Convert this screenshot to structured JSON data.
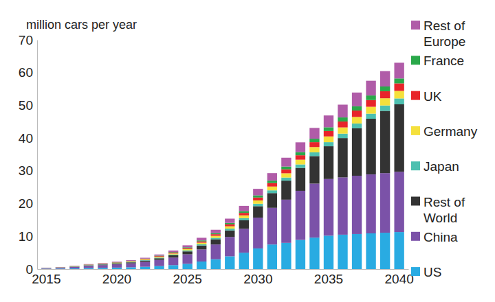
{
  "chart_data": {
    "type": "bar",
    "stacked": true,
    "legend": "right",
    "grid": false,
    "y_label": "million cars per year",
    "categories": [
      "2015",
      null,
      null,
      null,
      null,
      "2020",
      null,
      null,
      null,
      null,
      "2025",
      null,
      null,
      null,
      null,
      "2030",
      null,
      null,
      null,
      null,
      "2035",
      null,
      null,
      null,
      null,
      "2040"
    ],
    "ylim": [
      0,
      70
    ],
    "yticks": [
      0,
      10,
      20,
      30,
      40,
      50,
      60,
      70
    ],
    "series": [
      {
        "name": "US",
        "color": "#29abe2",
        "values": [
          0.1,
          0.15,
          0.2,
          0.3,
          0.35,
          0.45,
          0.55,
          0.7,
          0.9,
          1.2,
          1.6,
          2.3,
          3.0,
          3.9,
          5.0,
          6.3,
          7.5,
          8.0,
          8.9,
          9.6,
          10.2,
          10.5,
          10.7,
          10.9,
          11.1,
          11.3
        ]
      },
      {
        "name": "China",
        "color": "#7b52a8",
        "values": [
          0.15,
          0.25,
          0.45,
          0.7,
          0.85,
          1.0,
          1.2,
          1.5,
          1.9,
          2.3,
          2.9,
          3.7,
          4.5,
          5.9,
          7.3,
          9.4,
          11.2,
          13.2,
          15.0,
          16.5,
          17.3,
          17.5,
          17.8,
          18.0,
          18.2,
          18.4
        ]
      },
      {
        "name": "Rest of World",
        "color": "#333333",
        "values": [
          0.05,
          0.05,
          0.1,
          0.15,
          0.2,
          0.25,
          0.3,
          0.4,
          0.5,
          0.7,
          0.9,
          1.2,
          1.6,
          2.0,
          2.6,
          3.5,
          4.5,
          5.8,
          7.0,
          8.4,
          10.0,
          12.0,
          14.5,
          17.0,
          19.0,
          20.6
        ]
      },
      {
        "name": "Japan",
        "color": "#4dc0b0",
        "values": [
          0.03,
          0.04,
          0.05,
          0.07,
          0.08,
          0.1,
          0.12,
          0.15,
          0.2,
          0.25,
          0.3,
          0.35,
          0.45,
          0.55,
          0.65,
          0.75,
          0.85,
          0.95,
          1.05,
          1.15,
          1.25,
          1.35,
          1.45,
          1.55,
          1.65,
          1.8
        ]
      },
      {
        "name": "Germany",
        "color": "#f5e03c",
        "values": [
          0.02,
          0.03,
          0.05,
          0.08,
          0.1,
          0.12,
          0.15,
          0.2,
          0.25,
          0.3,
          0.4,
          0.5,
          0.6,
          0.7,
          0.85,
          1.0,
          1.15,
          1.3,
          1.45,
          1.6,
          1.75,
          1.9,
          2.0,
          2.1,
          2.2,
          2.3
        ]
      },
      {
        "name": "UK",
        "color": "#e8242a",
        "values": [
          0.03,
          0.04,
          0.05,
          0.07,
          0.08,
          0.1,
          0.12,
          0.15,
          0.2,
          0.25,
          0.3,
          0.4,
          0.5,
          0.6,
          0.75,
          0.9,
          1.05,
          1.2,
          1.35,
          1.5,
          1.65,
          1.8,
          1.95,
          2.05,
          2.15,
          2.3
        ]
      },
      {
        "name": "France",
        "color": "#2aa84a",
        "values": [
          0.02,
          0.02,
          0.03,
          0.05,
          0.06,
          0.07,
          0.09,
          0.1,
          0.15,
          0.2,
          0.25,
          0.3,
          0.35,
          0.45,
          0.55,
          0.65,
          0.75,
          0.85,
          0.95,
          1.05,
          1.15,
          1.25,
          1.3,
          1.4,
          1.45,
          1.5
        ]
      },
      {
        "name": "Rest of Europe",
        "color": "#b05ca8",
        "values": [
          0.03,
          0.04,
          0.07,
          0.1,
          0.12,
          0.15,
          0.2,
          0.25,
          0.35,
          0.45,
          0.6,
          0.8,
          1.0,
          1.3,
          1.6,
          2.0,
          2.3,
          2.7,
          3.0,
          3.3,
          3.6,
          3.9,
          4.2,
          4.5,
          4.7,
          4.8
        ]
      }
    ]
  }
}
